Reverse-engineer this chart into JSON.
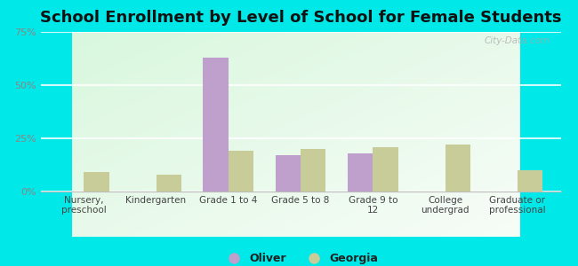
{
  "title": "School Enrollment by Level of School for Female Students",
  "categories": [
    "Nursery,\npreschool",
    "Kindergarten",
    "Grade 1 to 4",
    "Grade 5 to 8",
    "Grade 9 to\n12",
    "College\nundergrad",
    "Graduate or\nprofessional"
  ],
  "oliver_values": [
    0,
    0,
    63,
    17,
    18,
    0,
    0
  ],
  "georgia_values": [
    9,
    8,
    19,
    20,
    21,
    22,
    10
  ],
  "oliver_color": "#bf9fcc",
  "georgia_color": "#c8cc99",
  "ylim": [
    0,
    75
  ],
  "yticks": [
    0,
    25,
    50,
    75
  ],
  "ytick_labels": [
    "0%",
    "25%",
    "50%",
    "75%"
  ],
  "background_color": "#00e8e8",
  "bar_width": 0.35,
  "title_fontsize": 13,
  "legend_labels": [
    "Oliver",
    "Georgia"
  ],
  "watermark": "City-Data.com"
}
